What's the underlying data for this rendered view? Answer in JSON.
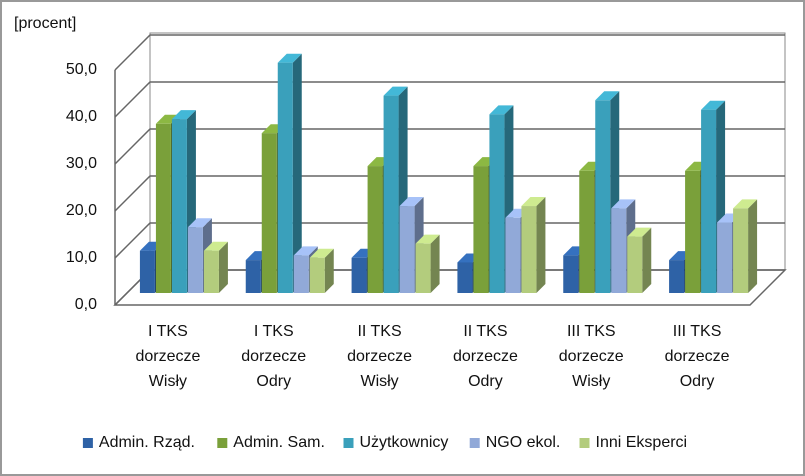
{
  "chart_data": {
    "type": "bar3d",
    "y_label": "[procent]",
    "categories": [
      [
        "I TKS",
        "dorzecze",
        "Wisły"
      ],
      [
        "I TKS",
        "dorzecze",
        "Odry"
      ],
      [
        "II TKS",
        "dorzecze",
        "Wisły"
      ],
      [
        "II TKS",
        "dorzecze",
        "Odry"
      ],
      [
        "III TKS",
        "dorzecze",
        "Wisły"
      ],
      [
        "III TKS",
        "dorzecze",
        "Odry"
      ]
    ],
    "series": [
      {
        "name": "Admin. Rząd.",
        "color": "#2e62a6",
        "values": [
          9,
          7,
          7.5,
          6.5,
          8,
          7
        ]
      },
      {
        "name": "Admin. Sam.",
        "color": "#7aa03a",
        "values": [
          36,
          34,
          27,
          27,
          26,
          26
        ]
      },
      {
        "name": "Użytkownicy",
        "color": "#3aa0bb",
        "values": [
          37,
          49,
          42,
          38,
          41,
          39
        ]
      },
      {
        "name": "NGO ekol.",
        "color": "#91a9d8",
        "values": [
          14,
          8,
          18.5,
          16,
          18,
          15
        ]
      },
      {
        "name": "Inni Eksperci",
        "color": "#b3cc7d",
        "values": [
          9,
          7.5,
          10.5,
          18.5,
          12,
          18
        ]
      }
    ],
    "ylim": [
      0,
      50
    ],
    "yticks": [
      {
        "value": 0,
        "label": "0,0"
      },
      {
        "value": 10,
        "label": "10,0"
      },
      {
        "value": 20,
        "label": "20,0"
      },
      {
        "value": 30,
        "label": "30,0"
      },
      {
        "value": 40,
        "label": "40,0"
      },
      {
        "value": 50,
        "label": "50,0"
      }
    ],
    "grid": true,
    "legend": "bottom"
  }
}
